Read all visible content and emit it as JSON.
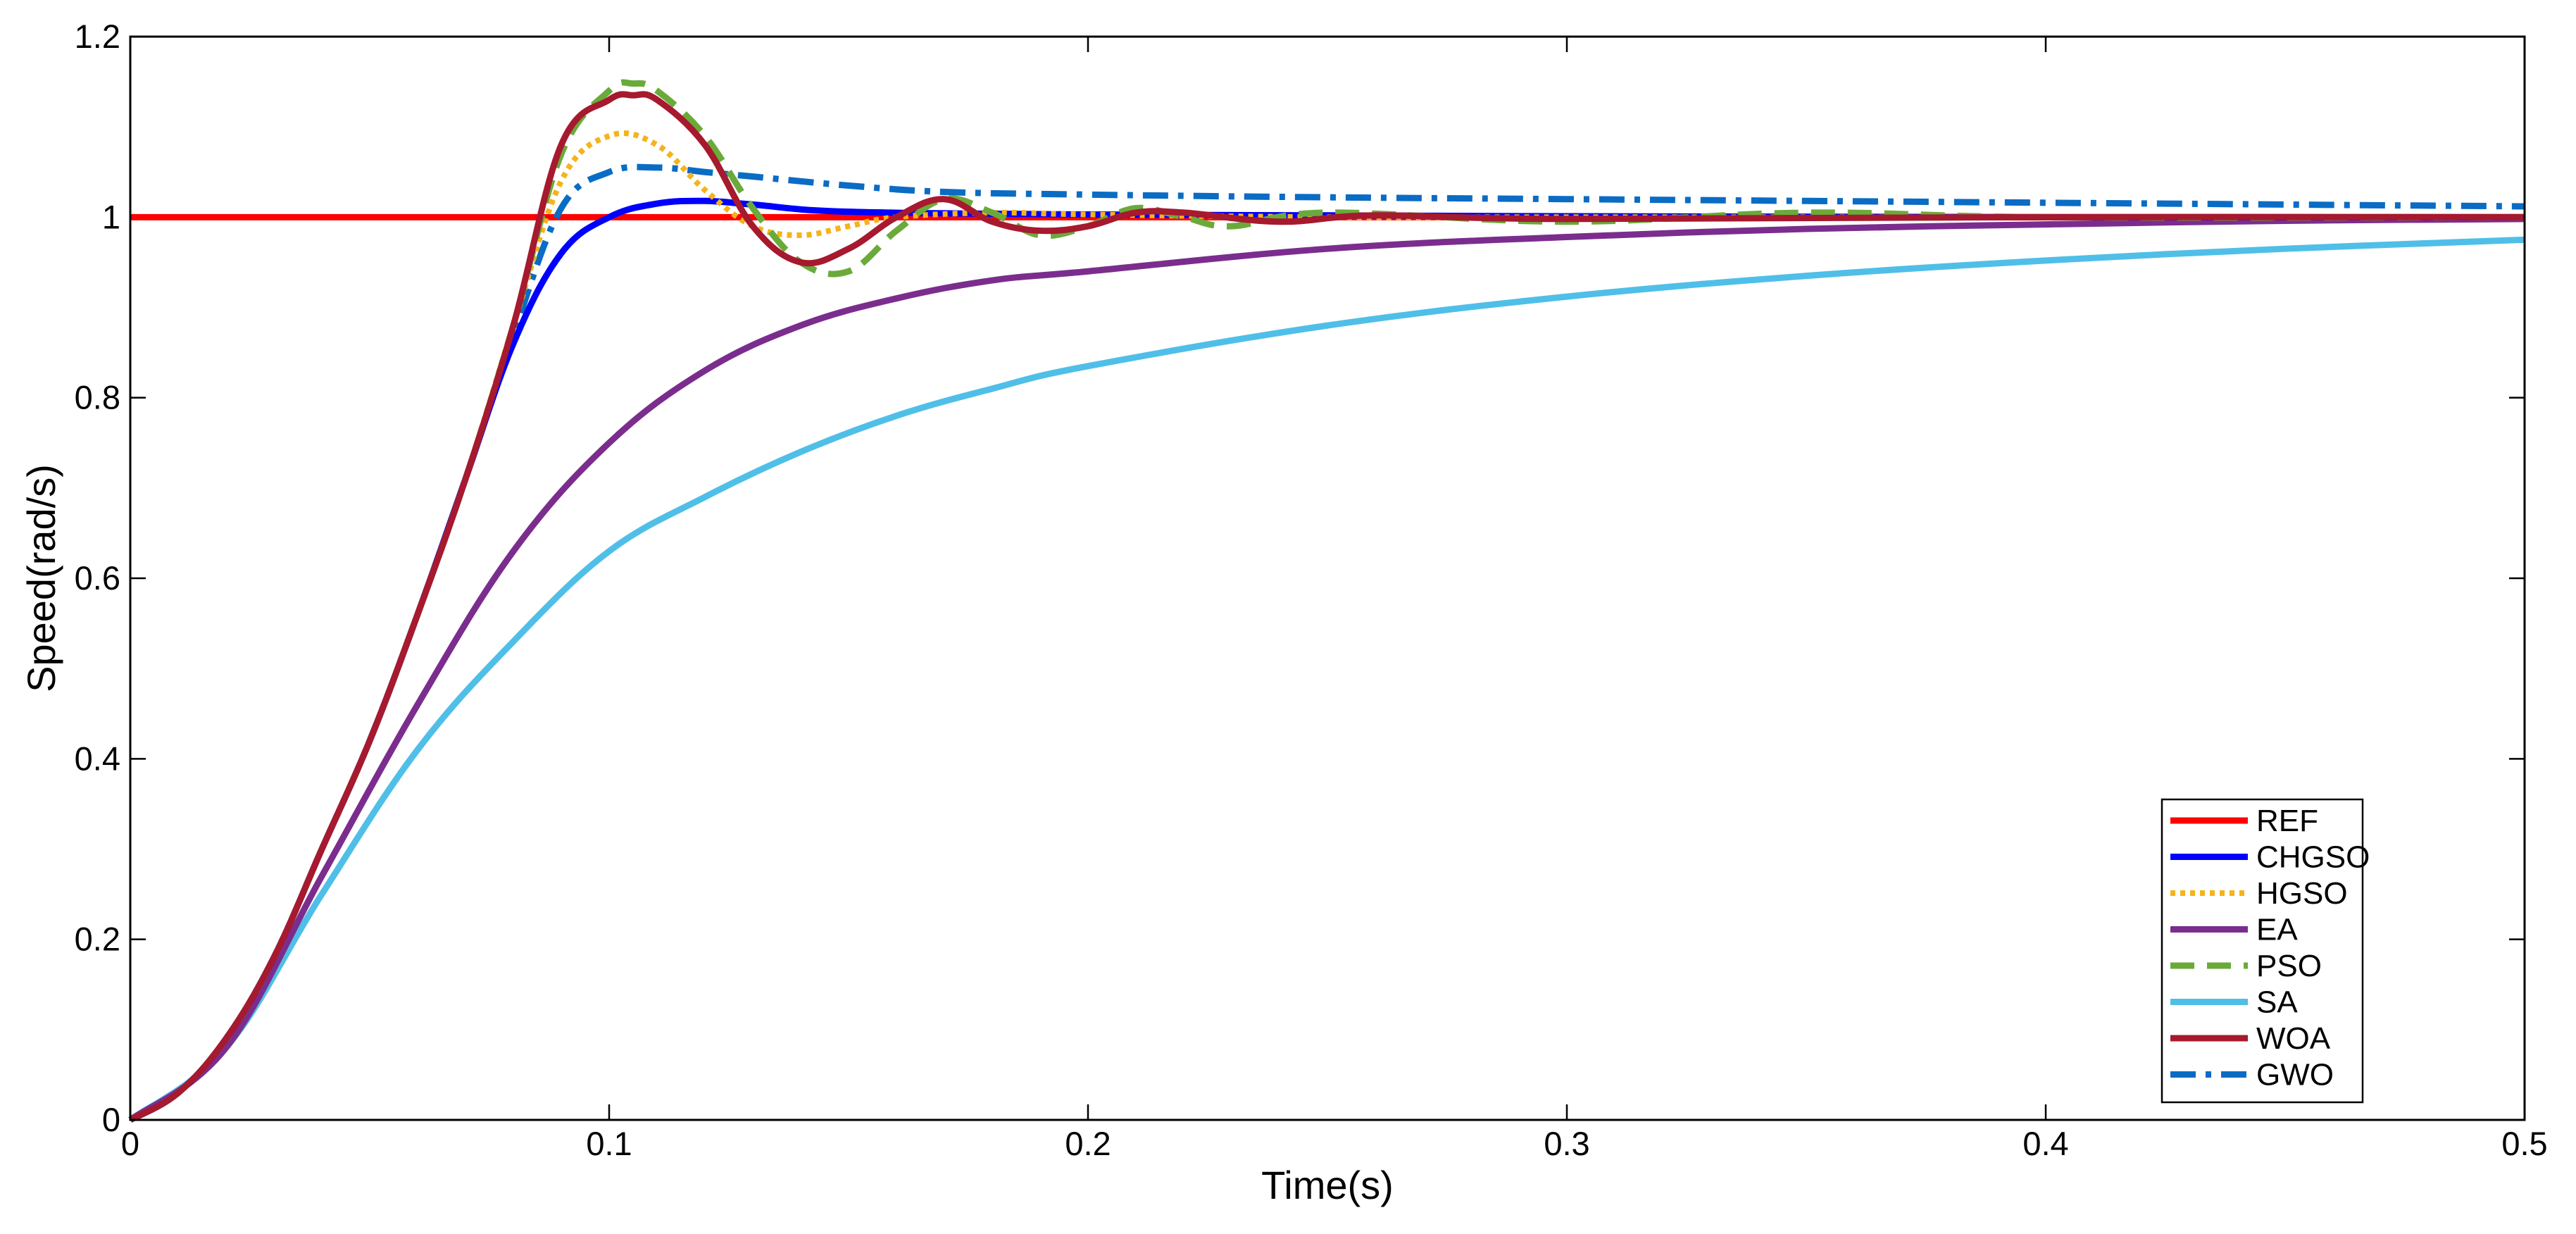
{
  "chart_data": {
    "type": "line",
    "title": "",
    "xlabel": "Time(s)",
    "ylabel": "Speed(rad/s)",
    "xlim": [
      0,
      0.5
    ],
    "ylim": [
      0,
      1.2
    ],
    "xticks": [
      "0",
      "0.1",
      "0.2",
      "0.3",
      "0.4",
      "0.5"
    ],
    "yticks": [
      "0",
      "0.2",
      "0.4",
      "0.6",
      "0.8",
      "1",
      "1.2"
    ],
    "grid": false,
    "legend_position": "bottom-right",
    "series": [
      {
        "name": "REF",
        "color": "#ff0000",
        "style": "solid",
        "x": [
          0,
          0.5
        ],
        "y": [
          1,
          1
        ]
      },
      {
        "name": "CHGSO",
        "color": "#0000ff",
        "style": "solid",
        "x": [
          0,
          0.01,
          0.02,
          0.03,
          0.04,
          0.05,
          0.06,
          0.07,
          0.08,
          0.09,
          0.1,
          0.11,
          0.12,
          0.13,
          0.15,
          0.2,
          0.25,
          0.3,
          0.4,
          0.5
        ],
        "y": [
          0,
          0.03,
          0.09,
          0.18,
          0.3,
          0.42,
          0.56,
          0.71,
          0.86,
          0.96,
          1.0,
          1.015,
          1.018,
          1.014,
          1.006,
          1.003,
          1.002,
          1.001,
          1.0,
          1.0
        ]
      },
      {
        "name": "HGSO",
        "color": "#f5b31c",
        "style": "dotted",
        "x": [
          0,
          0.01,
          0.02,
          0.03,
          0.04,
          0.05,
          0.06,
          0.07,
          0.08,
          0.09,
          0.1,
          0.11,
          0.12,
          0.13,
          0.14,
          0.15,
          0.16,
          0.18,
          0.2,
          0.25,
          0.3,
          0.4,
          0.5
        ],
        "y": [
          0,
          0.03,
          0.09,
          0.18,
          0.3,
          0.42,
          0.56,
          0.71,
          0.88,
          1.04,
          1.09,
          1.08,
          1.03,
          0.99,
          0.98,
          0.99,
          1.0,
          1.005,
          1.003,
          1.0,
          1.0,
          1.0,
          1.0
        ]
      },
      {
        "name": "EA",
        "color": "#7b2d8e",
        "style": "solid",
        "x": [
          0,
          0.02,
          0.04,
          0.06,
          0.08,
          0.1,
          0.12,
          0.14,
          0.16,
          0.18,
          0.2,
          0.25,
          0.3,
          0.35,
          0.4,
          0.45,
          0.5
        ],
        "y": [
          0,
          0.08,
          0.27,
          0.46,
          0.63,
          0.75,
          0.83,
          0.88,
          0.91,
          0.93,
          0.94,
          0.965,
          0.978,
          0.987,
          0.992,
          0.996,
          0.998
        ]
      },
      {
        "name": "PSO",
        "color": "#6aaa3a",
        "style": "dashed",
        "x": [
          0,
          0.01,
          0.02,
          0.03,
          0.04,
          0.05,
          0.06,
          0.07,
          0.08,
          0.09,
          0.1,
          0.105,
          0.11,
          0.12,
          0.13,
          0.14,
          0.15,
          0.16,
          0.17,
          0.18,
          0.19,
          0.2,
          0.21,
          0.22,
          0.23,
          0.25,
          0.3,
          0.35,
          0.4,
          0.5
        ],
        "y": [
          0,
          0.03,
          0.09,
          0.18,
          0.3,
          0.42,
          0.56,
          0.71,
          0.88,
          1.07,
          1.14,
          1.148,
          1.14,
          1.09,
          1.01,
          0.95,
          0.94,
          0.985,
          1.02,
          1.005,
          0.98,
          0.99,
          1.01,
          1.0,
          0.99,
          1.005,
          0.995,
          1.005,
          1.0,
          1.0
        ]
      },
      {
        "name": "SA",
        "color": "#4fbfe8",
        "style": "solid",
        "x": [
          0,
          0.02,
          0.04,
          0.06,
          0.08,
          0.1,
          0.12,
          0.14,
          0.16,
          0.18,
          0.2,
          0.25,
          0.3,
          0.35,
          0.4,
          0.45,
          0.5
        ],
        "y": [
          0,
          0.08,
          0.25,
          0.41,
          0.53,
          0.63,
          0.69,
          0.74,
          0.78,
          0.81,
          0.835,
          0.88,
          0.912,
          0.935,
          0.952,
          0.965,
          0.975
        ]
      },
      {
        "name": "WOA",
        "color": "#a6192e",
        "style": "solid",
        "x": [
          0,
          0.01,
          0.02,
          0.03,
          0.04,
          0.05,
          0.06,
          0.07,
          0.08,
          0.09,
          0.1,
          0.105,
          0.11,
          0.12,
          0.13,
          0.14,
          0.15,
          0.16,
          0.17,
          0.18,
          0.19,
          0.2,
          0.21,
          0.22,
          0.24,
          0.26,
          0.3,
          0.4,
          0.5
        ],
        "y": [
          0,
          0.03,
          0.09,
          0.18,
          0.3,
          0.42,
          0.56,
          0.71,
          0.88,
          1.08,
          1.13,
          1.135,
          1.13,
          1.08,
          0.99,
          0.95,
          0.965,
          1.0,
          1.02,
          0.995,
          0.985,
          0.99,
          1.005,
          1.005,
          0.995,
          1.002,
          0.998,
          1.0,
          1.0
        ]
      },
      {
        "name": "GWO",
        "color": "#0a6cc4",
        "style": "dashdot",
        "x": [
          0,
          0.01,
          0.02,
          0.03,
          0.04,
          0.05,
          0.06,
          0.07,
          0.08,
          0.09,
          0.1,
          0.11,
          0.12,
          0.13,
          0.15,
          0.17,
          0.2,
          0.25,
          0.3,
          0.35,
          0.4,
          0.45,
          0.5
        ],
        "y": [
          0,
          0.03,
          0.09,
          0.18,
          0.3,
          0.42,
          0.56,
          0.71,
          0.87,
          1.01,
          1.05,
          1.055,
          1.05,
          1.045,
          1.035,
          1.028,
          1.025,
          1.022,
          1.02,
          1.018,
          1.016,
          1.014,
          1.012
        ]
      }
    ]
  }
}
